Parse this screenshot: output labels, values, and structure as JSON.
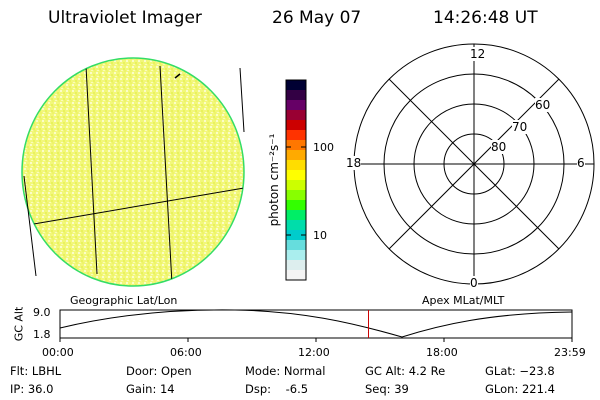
{
  "header": {
    "title": "Ultraviolet Imager",
    "date": "26 May 07",
    "time": "14:26:48 UT"
  },
  "colorbar": {
    "unit_label": "photon cm⁻²s⁻¹",
    "tick_labels": [
      "100",
      "10"
    ],
    "colors": [
      "#000033",
      "#330044",
      "#660066",
      "#990033",
      "#cc0000",
      "#ff3300",
      "#ff7700",
      "#ffaa00",
      "#ffdd00",
      "#ffff00",
      "#ccff00",
      "#88ff00",
      "#33ff00",
      "#00ee66",
      "#00ddaa",
      "#00cccc",
      "#66dddd",
      "#aaeeee",
      "#ddeeee",
      "#f4f4f4"
    ]
  },
  "polar_plot": {
    "mlt_labels": [
      "12",
      "18",
      "6",
      "0"
    ],
    "lat_labels": [
      "60",
      "70",
      "80"
    ]
  },
  "map_labels": {
    "left": "Geographic Lat/Lon",
    "right": "Apex MLat/MLT"
  },
  "timeline": {
    "ylabel": "GC Alt",
    "y_ticks": [
      "9.0",
      "1.8"
    ],
    "x_ticks": [
      "00:00",
      "06:00",
      "12:00",
      "18:00",
      "23:59"
    ],
    "current_time_hours": 14.45
  },
  "status": {
    "filter": "Flt: LBHL",
    "ip": "IP: 36.0",
    "door": "Door: Open",
    "gain": "Gain: 14",
    "mode": "Mode: Normal",
    "dsp": "Dsp:    -6.5",
    "gc_alt": "GC Alt: 4.2 Re",
    "seq": "Seq: 39",
    "glat": "GLat: −23.8",
    "glon": "GLon: 221.4"
  }
}
